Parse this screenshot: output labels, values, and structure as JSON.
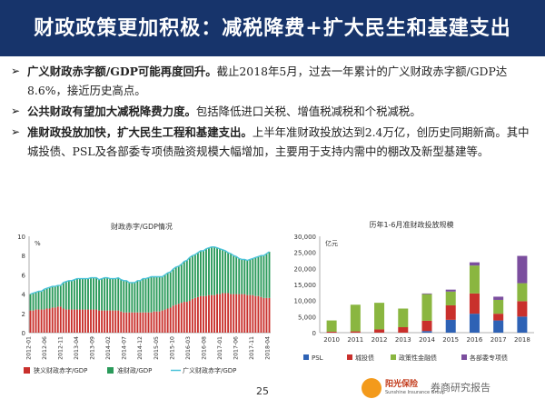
{
  "header": {
    "title": "财政政策更加积极：减税降费+扩大民生和基建支出"
  },
  "bullets": [
    {
      "bold": "广义财政赤字额/GDP可能再度回升。",
      "rest": "截止2018年5月，过去一年累计的广义财政赤字额/GDP达8.6%，接近历史高点。"
    },
    {
      "bold": "公共财政有望加大减税降费力度。",
      "rest": "包括降低进口关税、增值税减税和个税减税。"
    },
    {
      "bold": "准财政投放加快，扩大民生工程和基建支出。",
      "rest": "上半年准财政投放达到2.4万亿，创历史同期新高。其中城投债、PSL及各部委专项债融资规模大幅增加，主要用于支持内需中的棚改及新型基建等。"
    }
  ],
  "page_number": "25",
  "logo": {
    "name": "阳光保险",
    "english": "Sunshine Insurance Group",
    "watermark": "券商研究报告"
  },
  "chart_data": [
    {
      "type": "bar",
      "title": "财政赤字/GDP情况",
      "unit": "%",
      "ylim": [
        0,
        10
      ],
      "yticks": [
        0,
        2,
        4,
        6,
        8,
        10
      ],
      "xticks": [
        "2012-01",
        "2012-06",
        "2012-11",
        "2013-04",
        "2013-09",
        "2014-02",
        "2014-07",
        "2014-12",
        "2015-05",
        "2015-10",
        "2016-03",
        "2016-08",
        "2017-01",
        "2017-06",
        "2017-11",
        "2018-04"
      ],
      "legend": [
        "狭义财政赤字/GDP",
        "准财政/GDP",
        "广义财政赤字/GDP"
      ],
      "colors": {
        "narrow": "#c9302c",
        "quasi": "#2a9a5a",
        "broad": "#4cc3d9"
      },
      "series": [
        {
          "name": "狭义财政赤字/GDP",
          "values": [
            2.3,
            2.3,
            2.4,
            2.4,
            2.4,
            2.4,
            2.5,
            2.5,
            2.6,
            2.6,
            2.7,
            2.7,
            2.5,
            2.4,
            2.4,
            2.4,
            2.4,
            2.4,
            2.4,
            2.4,
            2.4,
            2.4,
            2.4,
            2.4,
            2.4,
            2.3,
            2.3,
            2.3,
            2.3,
            2.3,
            2.3,
            2.3,
            2.3,
            2.2,
            2.1,
            2.1,
            2.1,
            2.1,
            2.1,
            2.1,
            2.1,
            2.1,
            2.1,
            2.1,
            2.1,
            2.2,
            2.2,
            2.2,
            2.3,
            2.4,
            2.5,
            2.6,
            2.8,
            2.9,
            3.0,
            3.1,
            3.2,
            3.2,
            3.3,
            3.5,
            3.6,
            3.7,
            3.8,
            3.8,
            3.8,
            3.9,
            3.9,
            3.9,
            4.0,
            4.0,
            4.1,
            4.1,
            4.1,
            4.0,
            4.0,
            4.0,
            4.0,
            4.0,
            4.0,
            3.9,
            3.9,
            3.9,
            3.8,
            3.8,
            3.7,
            3.6,
            3.6,
            3.6
          ]
        },
        {
          "name": "准财政/GDP",
          "values": [
            1.7,
            1.8,
            1.8,
            1.9,
            1.9,
            2.1,
            2.1,
            2.2,
            2.2,
            2.2,
            2.2,
            2.2,
            2.7,
            2.9,
            3.0,
            3.0,
            3.1,
            3.2,
            3.2,
            3.2,
            3.2,
            3.2,
            3.3,
            3.3,
            3.3,
            3.2,
            3.3,
            3.4,
            3.4,
            3.3,
            3.3,
            3.3,
            3.4,
            3.3,
            3.3,
            3.3,
            3.1,
            3.1,
            3.1,
            3.3,
            3.3,
            3.5,
            3.5,
            3.6,
            3.7,
            3.6,
            3.6,
            3.6,
            3.5,
            3.6,
            3.7,
            3.7,
            3.8,
            3.9,
            3.9,
            4.0,
            4.2,
            4.3,
            4.5,
            4.5,
            4.5,
            4.6,
            4.7,
            4.7,
            4.9,
            4.9,
            5.0,
            5.0,
            4.8,
            4.7,
            4.5,
            4.4,
            4.2,
            4.2,
            4.0,
            3.9,
            3.7,
            3.6,
            3.6,
            3.6,
            3.7,
            3.8,
            4.0,
            4.1,
            4.3,
            4.4,
            4.6,
            4.8
          ]
        },
        {
          "name": "广义财政赤字/GDP",
          "values": [
            4.0,
            4.1,
            4.2,
            4.3,
            4.3,
            4.5,
            4.6,
            4.7,
            4.8,
            4.8,
            4.9,
            4.9,
            5.2,
            5.3,
            5.4,
            5.4,
            5.5,
            5.6,
            5.6,
            5.6,
            5.6,
            5.6,
            5.7,
            5.7,
            5.7,
            5.5,
            5.6,
            5.7,
            5.7,
            5.6,
            5.6,
            5.6,
            5.7,
            5.5,
            5.4,
            5.4,
            5.2,
            5.2,
            5.2,
            5.4,
            5.4,
            5.6,
            5.6,
            5.7,
            5.8,
            5.8,
            5.8,
            5.8,
            5.8,
            6.0,
            6.2,
            6.3,
            6.6,
            6.8,
            6.9,
            7.1,
            7.4,
            7.5,
            7.8,
            8.0,
            8.1,
            8.3,
            8.5,
            8.5,
            8.7,
            8.8,
            8.9,
            8.9,
            8.8,
            8.7,
            8.6,
            8.5,
            8.3,
            8.2,
            8.0,
            7.9,
            7.7,
            7.6,
            7.6,
            7.5,
            7.6,
            7.7,
            7.8,
            7.9,
            8.0,
            8.0,
            8.2,
            8.4
          ]
        }
      ]
    },
    {
      "type": "bar",
      "stacked": true,
      "title": "历年1-6月准财政投放规模",
      "unit": "亿元",
      "ylim": [
        0,
        30000
      ],
      "yticks": [
        0,
        5000,
        10000,
        15000,
        20000,
        25000,
        30000
      ],
      "categories": [
        "2010",
        "2011",
        "2012",
        "2013",
        "2014",
        "2015",
        "2016",
        "2017",
        "2018"
      ],
      "colors": {
        "PSL": "#2e62b5",
        "城投债": "#c9302c",
        "政策性金融债": "#8ab640",
        "各部委专项债": "#7b4e9e"
      },
      "series": [
        {
          "name": "PSL",
          "values": [
            0,
            0,
            0,
            0,
            500,
            4000,
            5900,
            3800,
            5000
          ]
        },
        {
          "name": "城投债",
          "values": [
            300,
            400,
            1000,
            1700,
            3200,
            4500,
            6300,
            2100,
            4800
          ]
        },
        {
          "name": "政策性金融债",
          "values": [
            3500,
            8300,
            8300,
            5800,
            8300,
            4300,
            8700,
            4300,
            5600
          ]
        },
        {
          "name": "各部委专项债",
          "values": [
            0,
            0,
            0,
            0,
            200,
            600,
            1000,
            1000,
            8500
          ]
        }
      ]
    }
  ]
}
